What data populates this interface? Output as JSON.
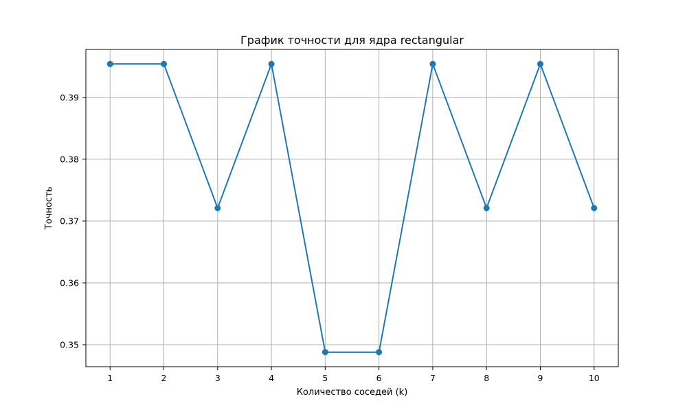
{
  "chart_data": {
    "type": "line",
    "title": "График точности для ядра rectangular",
    "xlabel": "Количество соседей (k)",
    "ylabel": "Точность",
    "x": [
      1,
      2,
      3,
      4,
      5,
      6,
      7,
      8,
      9,
      10
    ],
    "series": [
      {
        "values": [
          0.3954,
          0.3954,
          0.3721,
          0.3954,
          0.3488,
          0.3488,
          0.3954,
          0.3721,
          0.3954,
          0.3721
        ],
        "color": "#1f77b4",
        "marker": "circle"
      }
    ],
    "xticks": [
      "1",
      "2",
      "3",
      "4",
      "5",
      "6",
      "7",
      "8",
      "9",
      "10"
    ],
    "yticks": [
      0.35,
      0.36,
      0.37,
      0.38,
      0.39
    ],
    "ytick_labels": [
      "0.35",
      "0.36",
      "0.37",
      "0.38",
      "0.39"
    ],
    "xlim": [
      0.55,
      10.45
    ],
    "ylim": [
      0.34645,
      0.39775
    ],
    "grid": true
  }
}
